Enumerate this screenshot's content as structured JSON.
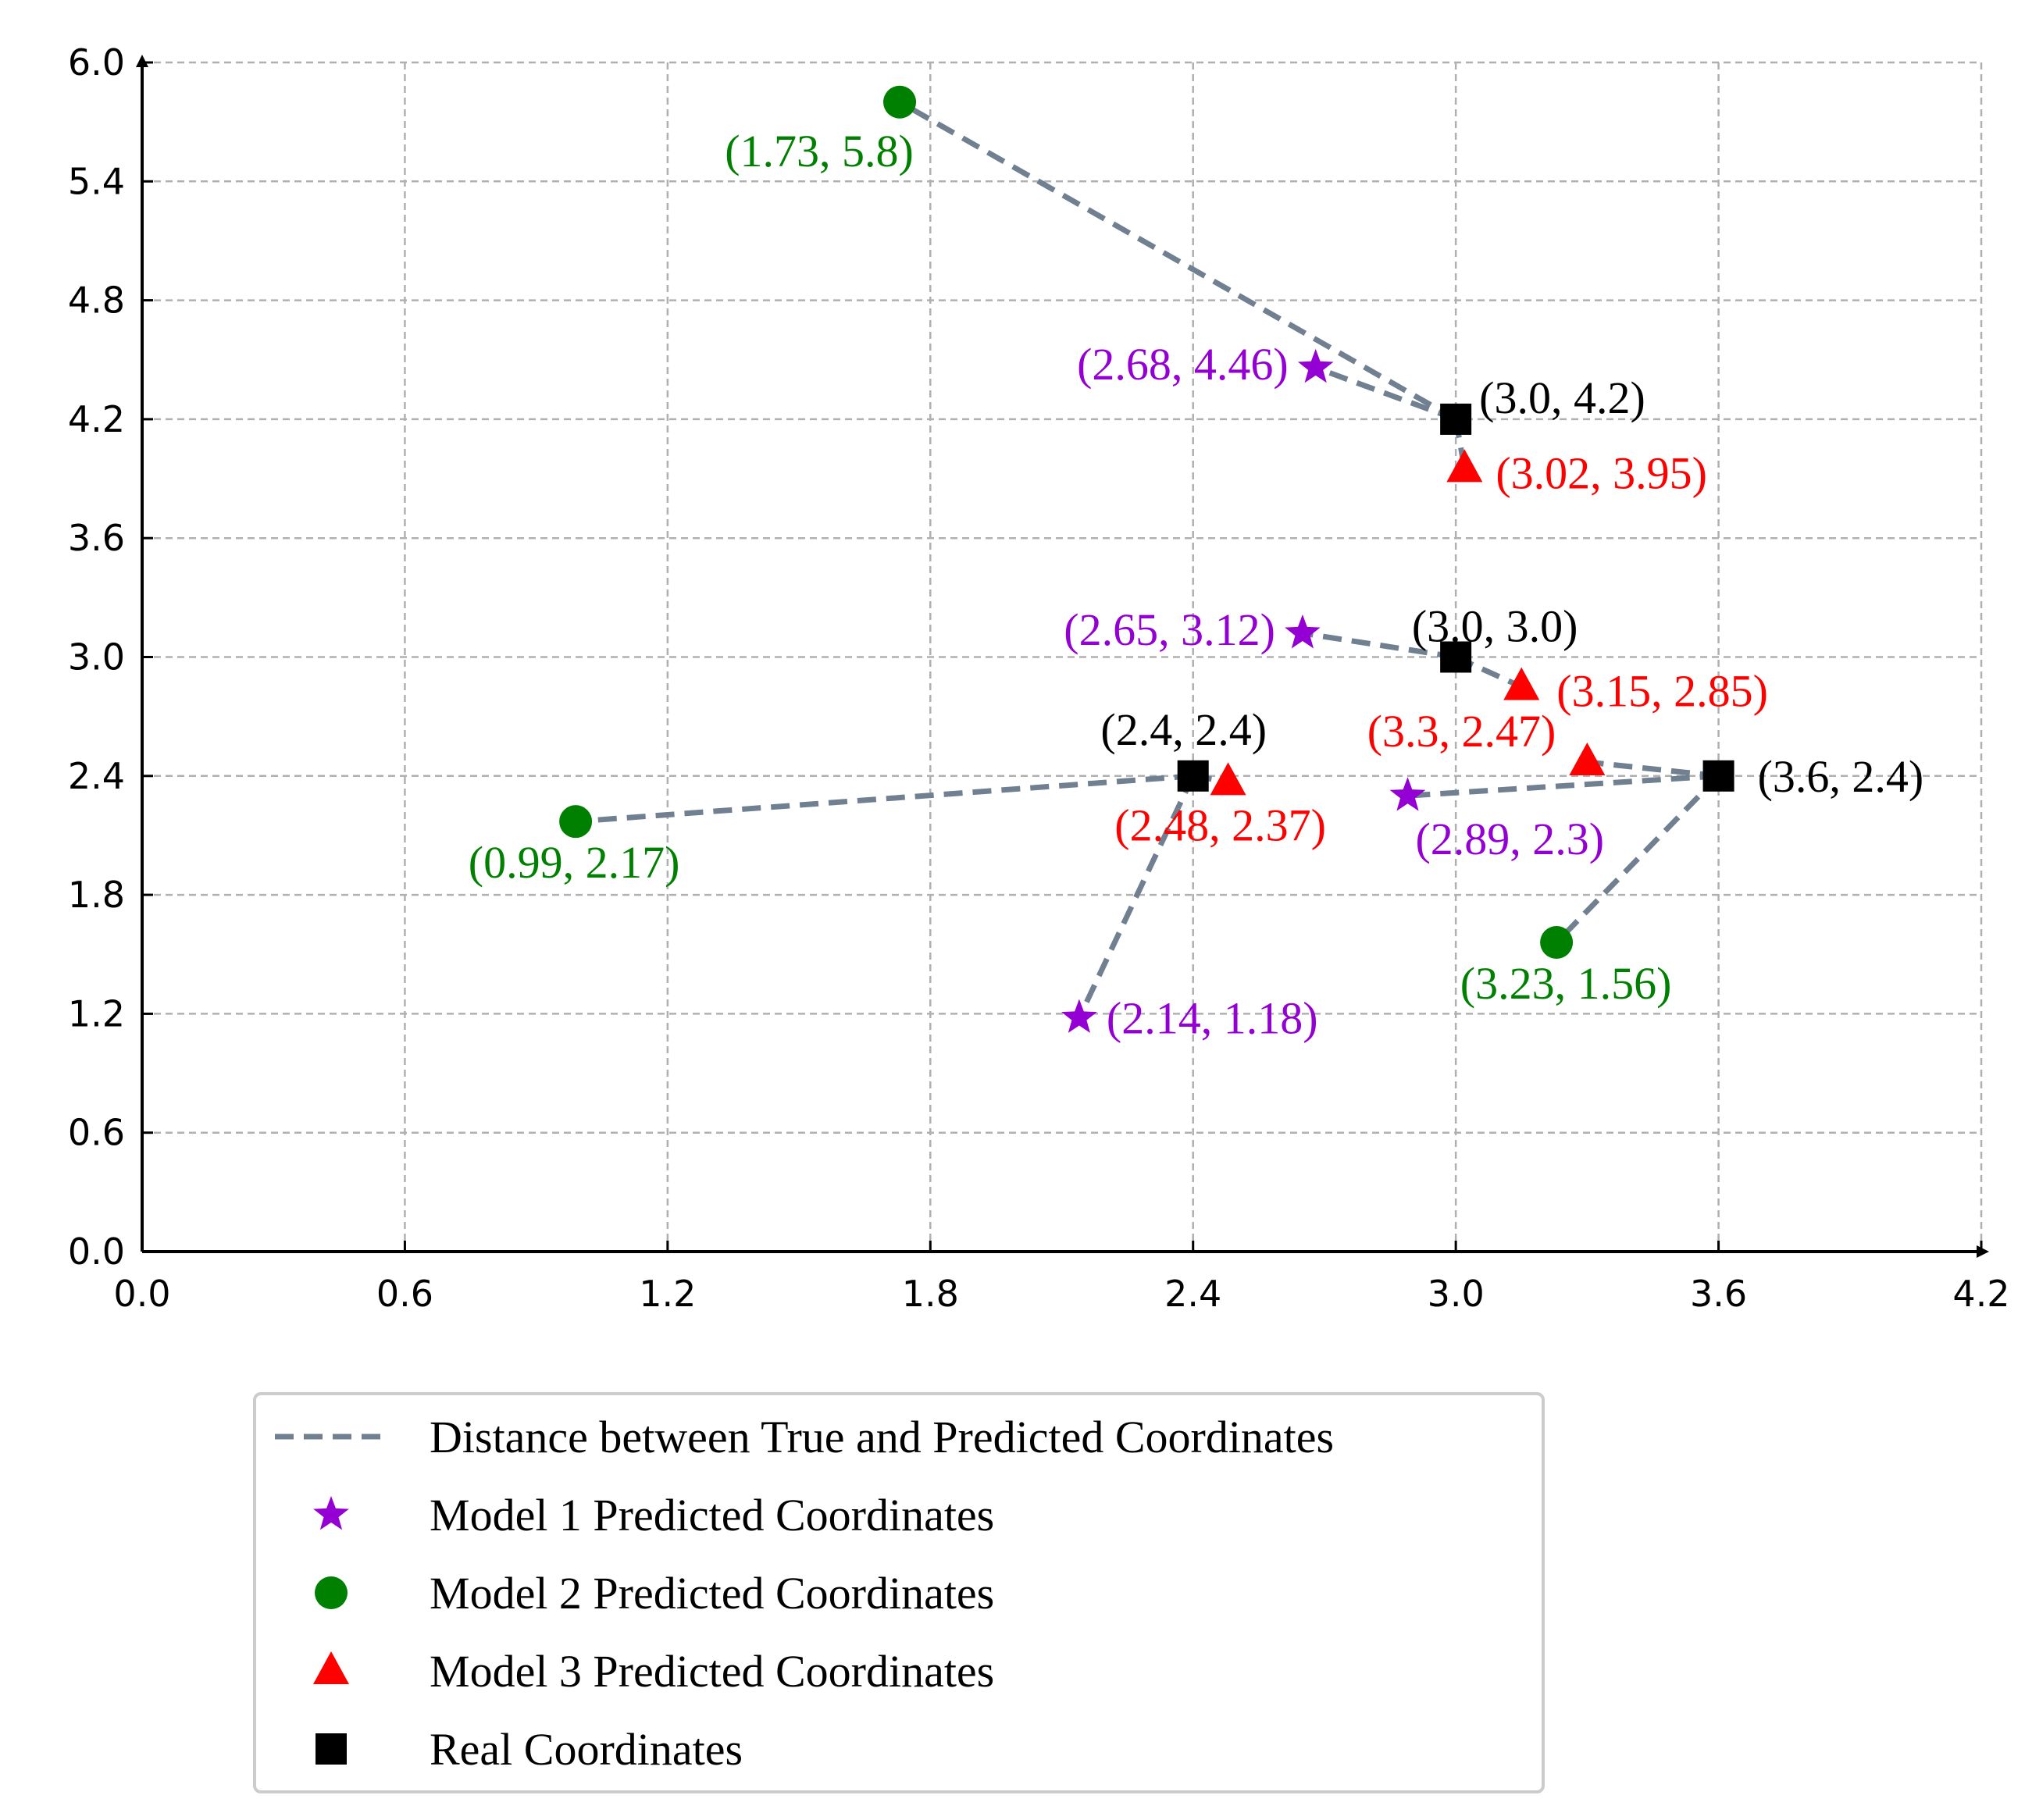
{
  "chart_data": {
    "type": "scatter",
    "title": "",
    "xlabel": "",
    "ylabel": "",
    "xlim": [
      0.0,
      4.2
    ],
    "ylim": [
      0.0,
      6.0
    ],
    "xticks": [
      "0.0",
      "0.6",
      "1.2",
      "1.8",
      "2.4",
      "3.0",
      "3.6",
      "4.2"
    ],
    "yticks": [
      "0.0",
      "0.6",
      "1.2",
      "1.8",
      "2.4",
      "3.0",
      "3.6",
      "4.2",
      "4.8",
      "5.4",
      "6.0"
    ],
    "xtick_values": [
      0.0,
      0.6,
      1.2,
      1.8,
      2.4,
      3.0,
      3.6,
      4.2
    ],
    "ytick_values": [
      0.0,
      0.6,
      1.2,
      1.8,
      2.4,
      3.0,
      3.6,
      4.2,
      4.8,
      5.4,
      6.0
    ],
    "grid": true,
    "legend_position": "below",
    "colors": {
      "distance": "#708090",
      "model1": "#9400D3",
      "model2": "#008000",
      "model3": "#FF0000",
      "real": "#000000"
    },
    "legend": [
      {
        "key": "distance",
        "label": "Distance between True and Predicted Coordinates"
      },
      {
        "key": "model1",
        "label": "Model 1 Predicted Coordinates"
      },
      {
        "key": "model2",
        "label": "Model 2 Predicted Coordinates"
      },
      {
        "key": "model3",
        "label": "Model 3 Predicted Coordinates"
      },
      {
        "key": "real",
        "label": "Real Coordinates"
      }
    ],
    "series": [
      {
        "name": "Real Coordinates",
        "key": "real",
        "marker": "square",
        "points": [
          [
            3.0,
            4.2
          ],
          [
            3.0,
            3.0
          ],
          [
            2.4,
            2.4
          ],
          [
            3.6,
            2.4
          ]
        ],
        "labels": [
          "(3.0, 4.2)",
          "(3.0, 3.0)",
          "(2.4, 2.4)",
          "(3.6, 2.4)"
        ]
      },
      {
        "name": "Model 1 Predicted Coordinates",
        "key": "model1",
        "marker": "star",
        "points": [
          [
            2.68,
            4.46
          ],
          [
            2.65,
            3.12
          ],
          [
            2.14,
            1.18
          ],
          [
            2.89,
            2.3
          ]
        ],
        "labels": [
          "(2.68, 4.46)",
          "(2.65, 3.12)",
          "(2.14, 1.18)",
          "(2.89, 2.3)"
        ]
      },
      {
        "name": "Model 2 Predicted Coordinates",
        "key": "model2",
        "marker": "circle",
        "points": [
          [
            1.73,
            5.8
          ],
          [
            0.99,
            2.17
          ],
          [
            3.23,
            1.56
          ]
        ],
        "labels": [
          "(1.73, 5.8)",
          "(0.99, 2.17)",
          "(3.23, 1.56)"
        ]
      },
      {
        "name": "Model 3 Predicted Coordinates",
        "key": "model3",
        "marker": "triangle",
        "points": [
          [
            3.02,
            3.95
          ],
          [
            3.15,
            2.85
          ],
          [
            2.48,
            2.37
          ],
          [
            3.3,
            2.47
          ]
        ],
        "labels": [
          "(3.02, 3.95)",
          "(3.15, 2.85)",
          "(2.48, 2.37)",
          "(3.3, 2.47)"
        ]
      }
    ],
    "distances": [
      {
        "from": [
          3.0,
          4.2
        ],
        "to": [
          2.68,
          4.46
        ]
      },
      {
        "from": [
          3.0,
          4.2
        ],
        "to": [
          1.73,
          5.8
        ]
      },
      {
        "from": [
          3.0,
          4.2
        ],
        "to": [
          3.02,
          3.95
        ]
      },
      {
        "from": [
          3.0,
          3.0
        ],
        "to": [
          2.65,
          3.12
        ]
      },
      {
        "from": [
          3.0,
          3.0
        ],
        "to": [
          3.15,
          2.85
        ]
      },
      {
        "from": [
          2.4,
          2.4
        ],
        "to": [
          0.99,
          2.17
        ]
      },
      {
        "from": [
          2.4,
          2.4
        ],
        "to": [
          2.48,
          2.37
        ]
      },
      {
        "from": [
          2.4,
          2.4
        ],
        "to": [
          2.14,
          1.18
        ]
      },
      {
        "from": [
          3.6,
          2.4
        ],
        "to": [
          3.3,
          2.47
        ]
      },
      {
        "from": [
          3.6,
          2.4
        ],
        "to": [
          2.89,
          2.3
        ]
      },
      {
        "from": [
          3.6,
          2.4
        ],
        "to": [
          3.23,
          1.56
        ]
      }
    ]
  }
}
